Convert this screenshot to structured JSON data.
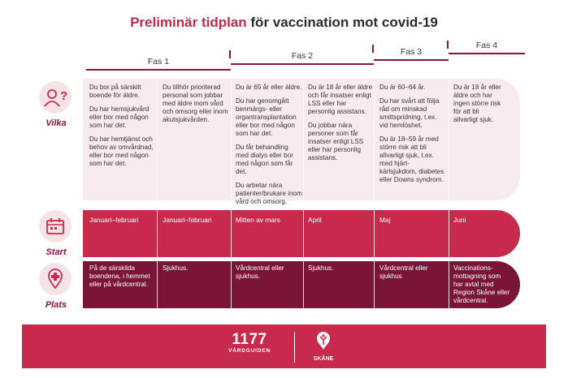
{
  "title": {
    "highlight": "Preliminär tidplan",
    "rest": " för vaccination mot covid-19"
  },
  "phases": [
    "Fas 1",
    "Fas 2",
    "Fas 3",
    "Fas 4"
  ],
  "rows": {
    "who": "Vilka",
    "start": "Start",
    "place": "Plats"
  },
  "icons": {
    "who": "person-question-icon",
    "start": "calendar-icon",
    "place": "location-pin-cross-icon",
    "skane": "skane-griffin-logo"
  },
  "colors": {
    "accent": "#c72a4c",
    "dark": "#7a1537",
    "light": "#f9ebed",
    "title": "#c0294a"
  },
  "columns": [
    {
      "who": [
        "Du bor på särskilt boende för äldre.",
        "Du har hemsjukvård eller bor med någon som har det.",
        "Du har hemtjänst och behov av omvårdnad, eller bor med någon som har det."
      ],
      "start": "Januari–februari",
      "place": "På de särskilda boendena, i hemmet eller på vårdcentral."
    },
    {
      "who": [
        "Du tillhör prioriterad personal som jobbar med äldre inom vård och omsorg eller inom akutsjukvården."
      ],
      "start": "Januari–februari",
      "place": "Sjukhus."
    },
    {
      "who": [
        "Du är 65 år eller äldre.",
        "Du har genomgått benmärgs- eller organtransplantation eller bor med någon som har det.",
        "Du får behandling med dialys eller bor med någon som får det.",
        "Du arbetar nära patienter/brukare inom vård och omsorg."
      ],
      "start": "Mitten av mars",
      "place": "Vårdcentral eller sjukhus."
    },
    {
      "who": [
        "Du är 18 år eller äldre och får insatser enligt LSS eller har personlig assistans.",
        "Du jobbar nära personer som får insatser enligt LSS eller har personlig assistans."
      ],
      "start": "April",
      "place": "Sjukhus."
    },
    {
      "who": [
        "Du är 60–64 år.",
        "Du har svårt att följa råd om minskad smittspridning, t.ex. vid hemlöshet.",
        "Du är 18–59 år med större risk att bli allvarligt sjuk, t.ex. med hjärt-kärlsjukdom, diabetes eller Downs syndrom."
      ],
      "start": "Maj",
      "place": "Vårdcentral eller sjukhus"
    },
    {
      "who": [
        "Du är 18 år eller äldre och har ingen större risk för att bli allvarligt sjuk."
      ],
      "start": "Juni",
      "place": "Vaccinations-mottagning som har avtal med Region Skåne eller vårdcentral."
    }
  ],
  "footer": {
    "logo_number": "1177",
    "logo_sub": "VÅRDGUIDEN",
    "logo_region": "SKÅNE"
  }
}
